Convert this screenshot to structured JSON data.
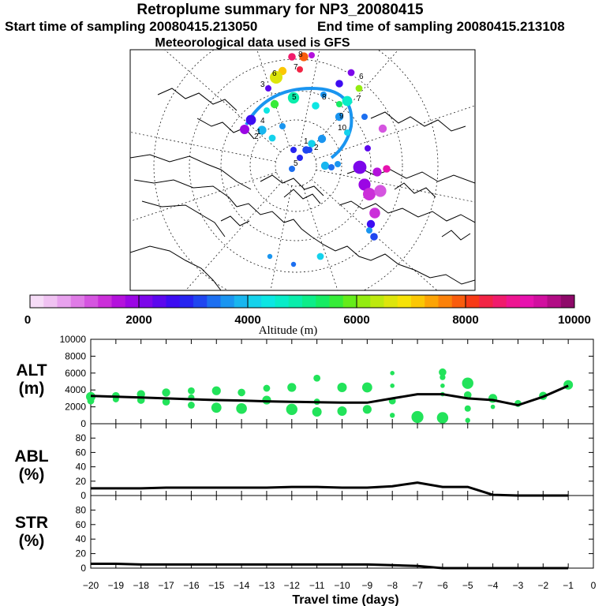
{
  "header": {
    "title": "Retroplume summary for NP3_20080415",
    "start_time": "Start time of sampling 20080415.213050",
    "end_time": "End time of sampling 20080415.213108",
    "meteo": "Meteorological data used is GFS"
  },
  "colorbar": {
    "label": "Altitude (m)",
    "ticks": [
      "0",
      "2000",
      "4000",
      "6000",
      "8000",
      "10000"
    ],
    "range": [
      0,
      10000
    ],
    "colors": [
      "#f6dcf7",
      "#f0c2f2",
      "#e8a2ee",
      "#df7be6",
      "#d555e0",
      "#cb2fd9",
      "#b412dc",
      "#9b06e4",
      "#7c06ea",
      "#5c07ee",
      "#3d0cf2",
      "#2624f1",
      "#1f46f0",
      "#1c6ff0",
      "#1a95f0",
      "#18b6ef",
      "#14d2ec",
      "#0ce6e3",
      "#08ecc8",
      "#0aedab",
      "#0ded89",
      "#16ec63",
      "#36ec38",
      "#65ec1a",
      "#93ec10",
      "#bde90e",
      "#dde50c",
      "#f6e207",
      "#fbc704",
      "#fca406",
      "#fb810a",
      "#f95c0d",
      "#f73a16",
      "#f22445",
      "#f01b6c",
      "#ee1591",
      "#e712ae",
      "#d10f9f",
      "#b20c85",
      "#8e0969"
    ]
  },
  "map": {
    "labels": [
      {
        "text": "3"
      },
      {
        "text": "6"
      },
      {
        "text": "4"
      },
      {
        "text": "5"
      },
      {
        "text": "9"
      },
      {
        "text": "2"
      },
      {
        "text": "10"
      },
      {
        "text": "1"
      },
      {
        "text": "7"
      },
      {
        "text": "8"
      },
      {
        "text": "2"
      },
      {
        "text": "6"
      },
      {
        "text": "7"
      },
      {
        "text": "1"
      },
      {
        "text": "8"
      },
      {
        "text": "5"
      }
    ],
    "points": [
      {
        "alt": 8500,
        "s": 1.2
      },
      {
        "alt": 7800,
        "s": 1.4
      },
      {
        "alt": 1500,
        "s": 1
      },
      {
        "alt": 8300,
        "s": 1
      },
      {
        "alt": 7200,
        "s": 1.3
      },
      {
        "alt": 6700,
        "s": 2
      },
      {
        "alt": 2300,
        "s": 1
      },
      {
        "alt": 4800,
        "s": 1.8
      },
      {
        "alt": 5600,
        "s": 1.3
      },
      {
        "alt": 4300,
        "s": 1
      },
      {
        "alt": 2700,
        "s": 1.2
      },
      {
        "alt": 6200,
        "s": 1.1
      },
      {
        "alt": 2200,
        "s": 1.1
      },
      {
        "alt": 3600,
        "s": 1
      },
      {
        "alt": 4600,
        "s": 1.6
      },
      {
        "alt": 3300,
        "s": 1
      },
      {
        "alt": 5300,
        "s": 1
      },
      {
        "alt": 4400,
        "s": 1.2
      },
      {
        "alt": 2500,
        "s": 1.6
      },
      {
        "alt": 1800,
        "s": 1.5
      },
      {
        "alt": 3900,
        "s": 1.4
      },
      {
        "alt": 4100,
        "s": 1.1
      },
      {
        "alt": 3700,
        "s": 1
      },
      {
        "alt": 1200,
        "s": 1.3
      },
      {
        "alt": 4000,
        "s": 1
      },
      {
        "alt": 2400,
        "s": 1
      },
      {
        "alt": 3500,
        "s": 1.3
      },
      {
        "alt": 3000,
        "s": 1.2
      },
      {
        "alt": 4200,
        "s": 1.2
      },
      {
        "alt": 3700,
        "s": 1.3
      },
      {
        "alt": 3800,
        "s": 1.3
      },
      {
        "alt": 3400,
        "s": 1
      },
      {
        "alt": 3600,
        "s": 1
      },
      {
        "alt": 2100,
        "s": 2.1
      },
      {
        "alt": 1900,
        "s": 1.9
      },
      {
        "alt": 1400,
        "s": 2
      },
      {
        "alt": 1600,
        "s": 1.4
      },
      {
        "alt": 9000,
        "s": 1.2
      },
      {
        "alt": 1000,
        "s": 1.9
      },
      {
        "alt": 1300,
        "s": 1.7
      },
      {
        "alt": 2600,
        "s": 1.3
      },
      {
        "alt": 3200,
        "s": 1.2
      },
      {
        "alt": 3500,
        "s": 1
      },
      {
        "alt": 3300,
        "s": 1
      },
      {
        "alt": 2800,
        "s": 1
      },
      {
        "alt": 3100,
        "s": 1
      },
      {
        "alt": 2900,
        "s": 1
      },
      {
        "alt": 3600,
        "s": 0.8
      },
      {
        "alt": 3400,
        "s": 0.8
      },
      {
        "alt": 4200,
        "s": 1.1
      }
    ]
  },
  "chart_data": [
    {
      "type": "scatter",
      "name": "ALT",
      "ylabel": "ALT\n(m)",
      "ylim": [
        0,
        10000
      ],
      "yticks": [
        "0",
        "2000",
        "4000",
        "6000",
        "8000",
        "10000"
      ],
      "xlim": [
        -20,
        0
      ],
      "line": {
        "x": [
          -20,
          -19,
          -18,
          -17,
          -16,
          -15,
          -14,
          -13,
          -12,
          -11,
          -10,
          -9,
          -8,
          -7,
          -6,
          -5,
          -4,
          -3,
          -2,
          -1
        ],
        "y": [
          3300,
          3200,
          3100,
          3000,
          2900,
          2800,
          2750,
          2650,
          2600,
          2550,
          2500,
          2500,
          3000,
          3500,
          3500,
          3000,
          2800,
          2200,
          3200,
          4500
        ]
      },
      "points": [
        {
          "x": -20,
          "y": 3200,
          "s": 1.5
        },
        {
          "x": -20,
          "y": 2700,
          "s": 1.1
        },
        {
          "x": -19,
          "y": 3300,
          "s": 1.2
        },
        {
          "x": -19,
          "y": 2900,
          "s": 1
        },
        {
          "x": -18,
          "y": 3500,
          "s": 1.3
        },
        {
          "x": -18,
          "y": 2800,
          "s": 1.2
        },
        {
          "x": -17,
          "y": 3700,
          "s": 1.3
        },
        {
          "x": -17,
          "y": 2600,
          "s": 1.2
        },
        {
          "x": -16,
          "y": 3900,
          "s": 1.1
        },
        {
          "x": -16,
          "y": 3100,
          "s": 1
        },
        {
          "x": -16,
          "y": 2200,
          "s": 1.1
        },
        {
          "x": -15,
          "y": 3900,
          "s": 1.4
        },
        {
          "x": -15,
          "y": 1900,
          "s": 1.6
        },
        {
          "x": -14,
          "y": 3700,
          "s": 1.2
        },
        {
          "x": -14,
          "y": 1800,
          "s": 1.7
        },
        {
          "x": -13,
          "y": 4200,
          "s": 1.1
        },
        {
          "x": -13,
          "y": 2800,
          "s": 1.4
        },
        {
          "x": -12,
          "y": 4300,
          "s": 1.4
        },
        {
          "x": -12,
          "y": 1700,
          "s": 1.8
        },
        {
          "x": -11,
          "y": 5400,
          "s": 1.1
        },
        {
          "x": -11,
          "y": 2600,
          "s": 1
        },
        {
          "x": -11,
          "y": 1400,
          "s": 1.5
        },
        {
          "x": -10,
          "y": 4300,
          "s": 1.5
        },
        {
          "x": -10,
          "y": 1500,
          "s": 1.5
        },
        {
          "x": -9,
          "y": 4300,
          "s": 1.6
        },
        {
          "x": -9,
          "y": 1700,
          "s": 1.4
        },
        {
          "x": -8,
          "y": 6000,
          "s": 0.7
        },
        {
          "x": -8,
          "y": 4500,
          "s": 0.7
        },
        {
          "x": -8,
          "y": 2700,
          "s": 1.1
        },
        {
          "x": -8,
          "y": 1000,
          "s": 0.8
        },
        {
          "x": -7,
          "y": 800,
          "s": 1.9
        },
        {
          "x": -6,
          "y": 6100,
          "s": 1.2
        },
        {
          "x": -6,
          "y": 5500,
          "s": 0.9
        },
        {
          "x": -6,
          "y": 4500,
          "s": 0.7
        },
        {
          "x": -6,
          "y": 3500,
          "s": 0.7
        },
        {
          "x": -6,
          "y": 700,
          "s": 1.8
        },
        {
          "x": -5,
          "y": 4800,
          "s": 1.8
        },
        {
          "x": -5,
          "y": 3400,
          "s": 1.2
        },
        {
          "x": -5,
          "y": 1800,
          "s": 1
        },
        {
          "x": -5,
          "y": 400,
          "s": 0.8
        },
        {
          "x": -4,
          "y": 3000,
          "s": 1.4
        },
        {
          "x": -4,
          "y": 2000,
          "s": 0.7
        },
        {
          "x": -3,
          "y": 2400,
          "s": 1.1
        },
        {
          "x": -2,
          "y": 3300,
          "s": 1.3
        },
        {
          "x": -1,
          "y": 4600,
          "s": 1.5
        }
      ]
    },
    {
      "type": "line",
      "name": "ABL",
      "ylabel": "ABL\n(%)",
      "ylim": [
        0,
        100
      ],
      "yticks": [
        "0",
        "20",
        "40",
        "60",
        "80"
      ],
      "xlim": [
        -20,
        0
      ],
      "x": [
        -20,
        -19,
        -18,
        -17,
        -16,
        -15,
        -14,
        -13,
        -12,
        -11,
        -10,
        -9,
        -8,
        -7,
        -6,
        -5,
        -4,
        -3,
        -2,
        -1
      ],
      "y": [
        10,
        10,
        10,
        11,
        11,
        11,
        11,
        11,
        12,
        12,
        11,
        11,
        13,
        18,
        12,
        12,
        1,
        0,
        0,
        0
      ]
    },
    {
      "type": "line",
      "name": "STR",
      "ylabel": "STR\n(%)",
      "ylim": [
        0,
        100
      ],
      "yticks": [
        "0",
        "20",
        "40",
        "60",
        "80"
      ],
      "xlim": [
        -20,
        0
      ],
      "xlabel": "Travel time (days)",
      "xticks": [
        "−20",
        "−19",
        "−18",
        "−17",
        "−16",
        "−15",
        "−14",
        "−13",
        "−12",
        "−11",
        "−10",
        "−9",
        "−8",
        "−7",
        "−6",
        "−5",
        "−4",
        "−3",
        "−2",
        "−1",
        "0"
      ],
      "x": [
        -20,
        -19,
        -18,
        -17,
        -16,
        -15,
        -14,
        -13,
        -12,
        -11,
        -10,
        -9,
        -8,
        -7,
        -6,
        -5,
        -4,
        -3,
        -2,
        -1
      ],
      "y": [
        6,
        6,
        5,
        5,
        5,
        5,
        5,
        5,
        5,
        5,
        5,
        5,
        4,
        3,
        0,
        0,
        0,
        0,
        0,
        0
      ]
    }
  ]
}
